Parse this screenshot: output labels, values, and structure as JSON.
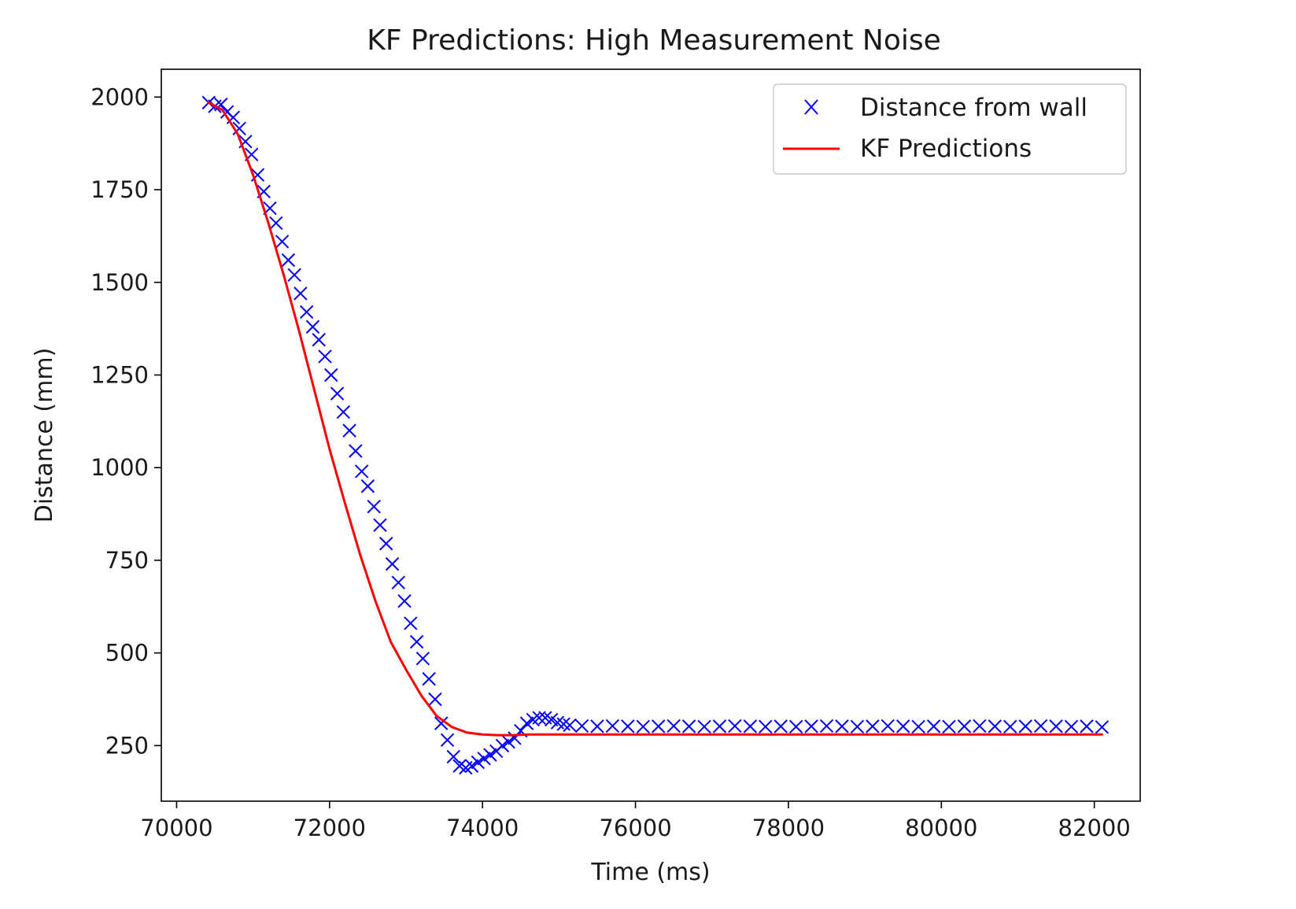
{
  "chart_data": {
    "type": "scatter",
    "title": "KF Predictions: High Measurement Noise",
    "xlabel": "Time (ms)",
    "ylabel": "Distance (mm)",
    "xlim": [
      69800,
      82600
    ],
    "ylim": [
      100,
      2075
    ],
    "xticks": [
      "70000",
      "72000",
      "74000",
      "76000",
      "78000",
      "80000",
      "82000"
    ],
    "xtick_values": [
      70000,
      72000,
      74000,
      76000,
      78000,
      80000,
      82000
    ],
    "yticks": [
      "250",
      "500",
      "750",
      "1000",
      "1250",
      "1500",
      "1750",
      "2000"
    ],
    "ytick_values": [
      250,
      500,
      750,
      1000,
      1250,
      1500,
      1750,
      2000
    ],
    "grid": false,
    "legend_position": "upper right",
    "series": [
      {
        "name": "Distance from wall",
        "kind": "scatter",
        "marker": "x",
        "color": "#0000ff",
        "x": [
          70420,
          70500,
          70580,
          70660,
          70740,
          70820,
          70900,
          70980,
          71060,
          71140,
          71220,
          71300,
          71380,
          71460,
          71540,
          71620,
          71700,
          71780,
          71860,
          71940,
          72020,
          72100,
          72180,
          72260,
          72340,
          72420,
          72500,
          72580,
          72660,
          72740,
          72820,
          72900,
          72980,
          73060,
          73140,
          73220,
          73300,
          73380,
          73460,
          73540,
          73620,
          73700,
          73780,
          73860,
          73940,
          74020,
          74100,
          74180,
          74260,
          74340,
          74420,
          74500,
          74580,
          74660,
          74740,
          74820,
          74900,
          74980,
          75060,
          75140,
          75300,
          75500,
          75700,
          75900,
          76100,
          76300,
          76500,
          76700,
          76900,
          77100,
          77300,
          77500,
          77700,
          77900,
          78100,
          78300,
          78500,
          78700,
          78900,
          79100,
          79300,
          79500,
          79700,
          79900,
          80100,
          80300,
          80500,
          80700,
          80900,
          81100,
          81300,
          81500,
          81700,
          81900,
          82100
        ],
        "y": [
          1985,
          1975,
          1980,
          1960,
          1945,
          1915,
          1880,
          1845,
          1790,
          1745,
          1700,
          1660,
          1610,
          1560,
          1520,
          1470,
          1420,
          1380,
          1345,
          1300,
          1250,
          1200,
          1150,
          1100,
          1045,
          990,
          950,
          895,
          845,
          795,
          740,
          690,
          640,
          580,
          530,
          485,
          430,
          375,
          310,
          265,
          220,
          195,
          190,
          195,
          205,
          215,
          225,
          235,
          250,
          260,
          270,
          290,
          310,
          320,
          325,
          325,
          320,
          312,
          308,
          305,
          303,
          302,
          303,
          302,
          301,
          302,
          303,
          302,
          301,
          302,
          303,
          302,
          301,
          302,
          301,
          302,
          303,
          302,
          301,
          302,
          303,
          302,
          301,
          302,
          301,
          302,
          303,
          302,
          301,
          302,
          303,
          302,
          301,
          302,
          300
        ]
      },
      {
        "name": "KF Predictions",
        "kind": "line",
        "color": "#ff0000",
        "x": [
          70420,
          70600,
          70800,
          71000,
          71200,
          71400,
          71600,
          71800,
          72000,
          72200,
          72400,
          72600,
          72800,
          73000,
          73200,
          73400,
          73600,
          73800,
          74000,
          74200,
          74400,
          74600,
          74800,
          75000,
          76000,
          78000,
          80000,
          82100
        ],
        "y": [
          1985,
          1965,
          1900,
          1790,
          1660,
          1520,
          1370,
          1210,
          1050,
          905,
          765,
          640,
          530,
          455,
          385,
          330,
          300,
          285,
          280,
          278,
          278,
          280,
          280,
          280,
          280,
          280,
          280,
          280
        ]
      }
    ]
  }
}
